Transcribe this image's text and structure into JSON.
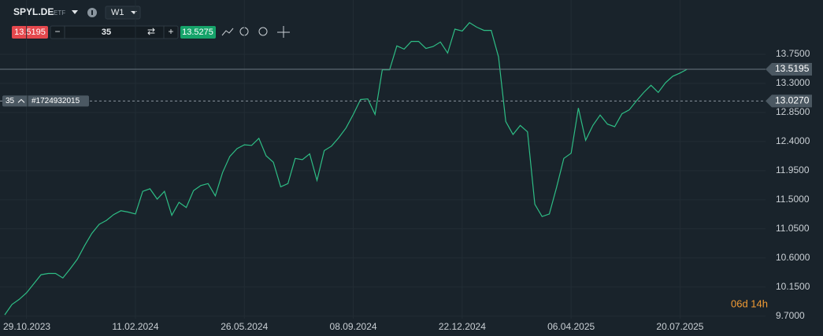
{
  "toolbar": {
    "symbol": "SPYL.DE",
    "exchange_type": "ETF",
    "timeframe": "W1",
    "ask": 13.5275,
    "countdown": "06d 14h"
  },
  "chart_data": {
    "type": "line",
    "categories": [
      null,
      null,
      null,
      "29.10.2023",
      null,
      null,
      null,
      null,
      null,
      null,
      null,
      null,
      null,
      null,
      null,
      null,
      null,
      null,
      "11.02.2024",
      null,
      null,
      null,
      null,
      null,
      null,
      null,
      null,
      null,
      null,
      null,
      null,
      null,
      null,
      "26.05.2024",
      null,
      null,
      null,
      null,
      null,
      null,
      null,
      null,
      null,
      null,
      null,
      null,
      null,
      null,
      "08.09.2024",
      null,
      null,
      null,
      null,
      null,
      null,
      null,
      null,
      null,
      null,
      null,
      null,
      null,
      null,
      "22.12.2024",
      null,
      null,
      null,
      null,
      null,
      null,
      null,
      null,
      null,
      null,
      null,
      null,
      null,
      null,
      "06.04.2025",
      null,
      null,
      null,
      null,
      null,
      null,
      null,
      null,
      null,
      null,
      null,
      null,
      null,
      null,
      "20.07.2025",
      null
    ],
    "series": [
      {
        "name": "SPYL.DE",
        "color": "#2ebd85",
        "values": [
          9.72,
          9.88,
          9.96,
          10.06,
          10.2,
          10.34,
          10.36,
          10.36,
          10.29,
          10.43,
          10.58,
          10.79,
          10.98,
          11.12,
          11.18,
          11.27,
          11.33,
          11.31,
          11.28,
          11.63,
          11.67,
          11.51,
          11.63,
          11.26,
          11.46,
          11.38,
          11.64,
          11.72,
          11.75,
          11.56,
          11.92,
          12.17,
          12.29,
          12.35,
          12.34,
          12.45,
          12.18,
          12.08,
          11.7,
          11.75,
          12.14,
          12.12,
          12.21,
          11.8,
          12.26,
          12.33,
          12.46,
          12.61,
          12.82,
          13.05,
          13.06,
          12.82,
          13.51,
          13.51,
          13.88,
          13.83,
          13.95,
          13.95,
          13.84,
          13.87,
          13.94,
          13.77,
          14.14,
          14.11,
          14.24,
          14.17,
          14.12,
          14.12,
          13.71,
          12.71,
          12.51,
          12.65,
          12.55,
          11.43,
          11.24,
          11.28,
          11.69,
          12.14,
          12.22,
          12.92,
          12.42,
          12.65,
          12.81,
          12.67,
          12.63,
          12.83,
          12.89,
          13.03,
          13.16,
          13.27,
          13.16,
          13.31,
          13.41,
          13.46,
          13.52
        ]
      }
    ],
    "ylim": [
      9.66,
      14.59
    ],
    "yticks": [
      {
        "value": 9.7,
        "label": "9.7000"
      },
      {
        "value": 10.15,
        "label": "10.1500"
      },
      {
        "value": 10.6,
        "label": "10.6000"
      },
      {
        "value": 11.05,
        "label": "11.0500"
      },
      {
        "value": 11.5,
        "label": "11.5000"
      },
      {
        "value": 11.95,
        "label": "11.9500"
      },
      {
        "value": 12.4,
        "label": "12.4000"
      },
      {
        "value": 12.85,
        "label": "12.8500"
      },
      {
        "value": 13.3,
        "label": "13.3000"
      },
      {
        "value": 13.75,
        "label": "13.7500"
      }
    ],
    "grid": true,
    "last_price": 13.5195,
    "order": {
      "quantity": 35,
      "id": "#1724932015",
      "price": {
        "value": 13.027,
        "label": "13.0270"
      }
    }
  }
}
